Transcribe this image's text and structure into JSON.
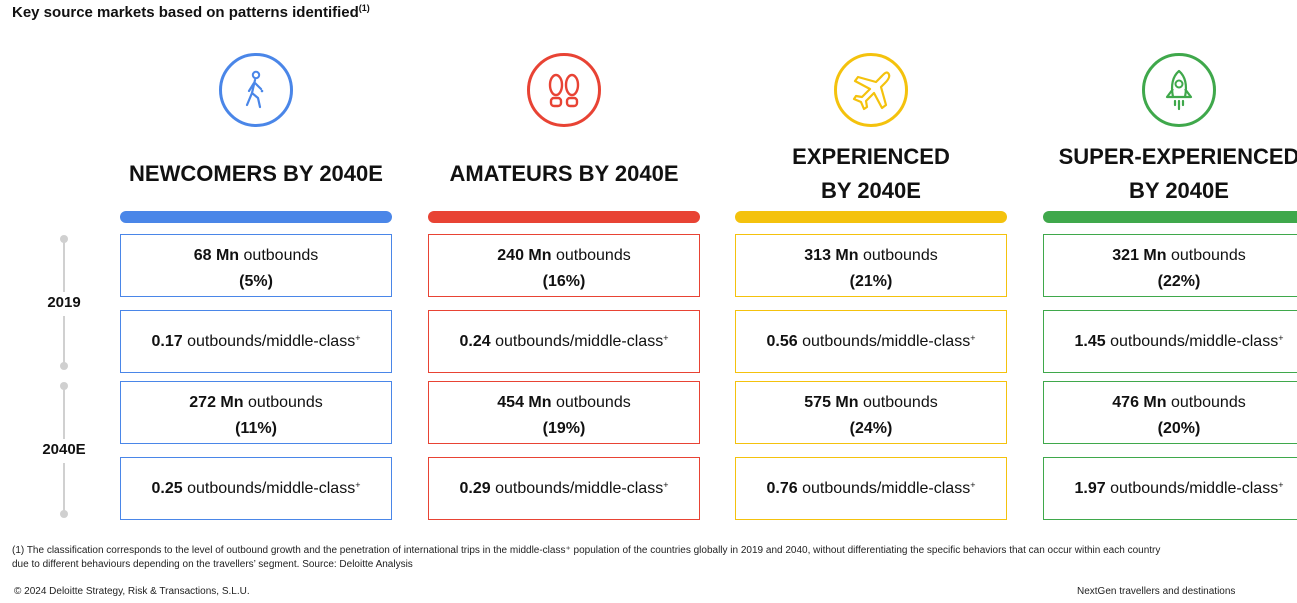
{
  "title": "Key source markets based on patterns identified",
  "title_sup": "(1)",
  "colors": {
    "blue": "#4A86E8",
    "red": "#E84334",
    "yellow": "#F4C20D",
    "green": "#3FA84B"
  },
  "timeline": {
    "year1": "2019",
    "year2": "2040E"
  },
  "segments": [
    {
      "icon": "walking-person-icon",
      "title_line1": "NEWCOMERS BY 2040E",
      "title_line2": "",
      "y2019": {
        "outbounds_value": "68 Mn",
        "outbounds_label": "outbounds",
        "pct": "(5%)",
        "ratio_value": "0.17",
        "ratio_label": "outbounds/middle-class",
        "ratio_sup": "+"
      },
      "y2040": {
        "outbounds_value": "272 Mn",
        "outbounds_label": "outbounds",
        "pct": "(11%)",
        "ratio_value": "0.25",
        "ratio_label": "outbounds/middle-class",
        "ratio_sup": "+"
      }
    },
    {
      "icon": "footprints-icon",
      "title_line1": "AMATEURS BY 2040E",
      "title_line2": "",
      "y2019": {
        "outbounds_value": "240 Mn",
        "outbounds_label": "outbounds",
        "pct": "(16%)",
        "ratio_value": "0.24",
        "ratio_label": "outbounds/middle-class",
        "ratio_sup": "+"
      },
      "y2040": {
        "outbounds_value": "454 Mn",
        "outbounds_label": "outbounds",
        "pct": "(19%)",
        "ratio_value": "0.29",
        "ratio_label": "outbounds/middle-class",
        "ratio_sup": "+"
      }
    },
    {
      "icon": "airplane-icon",
      "title_line1": "EXPERIENCED",
      "title_line2": "BY 2040E",
      "y2019": {
        "outbounds_value": "313 Mn",
        "outbounds_label": "outbounds",
        "pct": "(21%)",
        "ratio_value": "0.56",
        "ratio_label": "outbounds/middle-class",
        "ratio_sup": "+"
      },
      "y2040": {
        "outbounds_value": "575 Mn",
        "outbounds_label": "outbounds",
        "pct": "(24%)",
        "ratio_value": "0.76",
        "ratio_label": "outbounds/middle-class",
        "ratio_sup": "+"
      }
    },
    {
      "icon": "rocket-icon",
      "title_line1": "SUPER-EXPERIENCED",
      "title_line2": "BY 2040E",
      "y2019": {
        "outbounds_value": "321 Mn",
        "outbounds_label": "outbounds",
        "pct": "(22%)",
        "ratio_value": "1.45",
        "ratio_label": "outbounds/middle-class",
        "ratio_sup": "+"
      },
      "y2040": {
        "outbounds_value": "476 Mn",
        "outbounds_label": "outbounds",
        "pct": "(20%)",
        "ratio_value": "1.97",
        "ratio_label": "outbounds/middle-class",
        "ratio_sup": "+"
      }
    }
  ],
  "footnote_line1": "(1) The classification corresponds to the level of outbound growth and the penetration of international trips in the middle-class⁺ population of the countries globally in 2019 and 2040, without differentiating the specific behaviors that can occur within each country",
  "footnote_line2": "due to different behaviours depending on the travellers’ segment. Source: Deloitte Analysis",
  "footer": {
    "copyright": "© 2024 Deloitte Strategy, Risk & Transactions, S.L.U.",
    "report": "NextGen travellers and destinations"
  }
}
